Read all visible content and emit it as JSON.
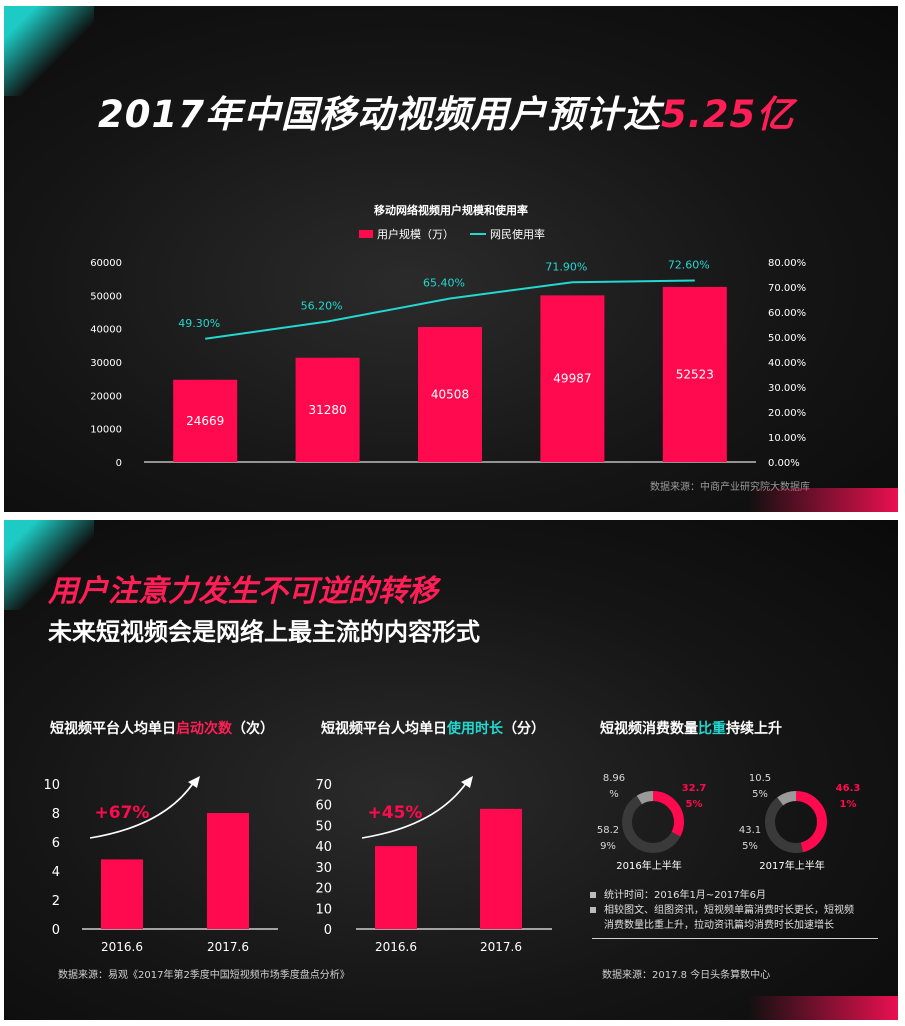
{
  "panel1": {
    "title_prefix": "2017年中国移动视频用户预计达",
    "title_highlight": "5.25亿",
    "source": "数据来源：中商产业研究院大数据库"
  },
  "panel2": {
    "headline1": "用户注意力发生不可逆的转移",
    "headline2": "未来短视频会是网络上最主流的内容形式",
    "chart1_title_a": "短视频平台人均单日",
    "chart1_title_b": "启动次数",
    "chart1_title_c": "（次）",
    "chart1_growth": "+67%",
    "chart2_title_a": "短视频平台人均单日",
    "chart2_title_b": "使用时长",
    "chart2_title_c": "（分）",
    "chart2_growth": "+45%",
    "chart3_title_a": "短视频消费数量",
    "chart3_title_b": "比重",
    "chart3_title_c": "持续上升",
    "source_left": "数据来源：易观《2017年第2季度中国短视频市场季度盘点分析》",
    "source_right": "数据来源：2017.8 今日头条算数中心",
    "notes": [
      "统计时间：2016年1月~2017年6月",
      "相较图文、组图资讯，短视频单篇消费时长更长，短视频消费数量比重上升，拉动资讯篇均消费时长加速增长"
    ]
  },
  "colors": {
    "pink": "#ff0a4e",
    "cyan": "#22d8d0",
    "gray_ring": "#3a3a3a",
    "light_ring": "#9a9a9a"
  },
  "chart_data": [
    {
      "type": "bar",
      "title": "移动网络视频用户规模和使用率",
      "categories": [
        "",
        "",
        "",
        "",
        ""
      ],
      "series": [
        {
          "name": "用户规模（万）",
          "type": "bar",
          "axis": "left",
          "values": [
            24669,
            31280,
            40508,
            49987,
            52523
          ]
        },
        {
          "name": "网民使用率",
          "type": "line",
          "axis": "right",
          "values": [
            49.3,
            56.2,
            65.4,
            71.9,
            72.6
          ],
          "labels": [
            "49.30%",
            "56.20%",
            "65.40%",
            "71.90%",
            "72.60%"
          ]
        }
      ],
      "ylim": [
        0,
        60000
      ],
      "y_ticks": [
        "0",
        "10000",
        "20000",
        "30000",
        "40000",
        "50000",
        "60000"
      ],
      "y2lim": [
        0,
        80
      ],
      "y2_ticks": [
        "0.00%",
        "10.00%",
        "20.00%",
        "30.00%",
        "40.00%",
        "50.00%",
        "60.00%",
        "70.00%",
        "80.00%"
      ],
      "legend": "top-center",
      "grid": false
    },
    {
      "type": "bar",
      "categories": [
        "2016.6",
        "2017.6"
      ],
      "values": [
        4.8,
        8
      ],
      "ylim": [
        0,
        10
      ],
      "y_ticks": [
        "0",
        "2",
        "4",
        "6",
        "8",
        "10"
      ]
    },
    {
      "type": "bar",
      "categories": [
        "2016.6",
        "2017.6"
      ],
      "values": [
        40,
        58
      ],
      "ylim": [
        0,
        70
      ],
      "y_ticks": [
        "0",
        "10",
        "20",
        "30",
        "40",
        "50",
        "60",
        "70"
      ]
    },
    {
      "type": "pie",
      "subtype": "donut",
      "label": "2016年上半年",
      "slices": [
        {
          "value": 32.75,
          "text": [
            "32.7",
            "5%"
          ]
        },
        {
          "value": 58.29,
          "text": [
            "58.2",
            "9%"
          ]
        },
        {
          "value": 8.96,
          "text": [
            "8.96",
            "%"
          ]
        }
      ]
    },
    {
      "type": "pie",
      "subtype": "donut",
      "label": "2017年上半年",
      "slices": [
        {
          "value": 46.31,
          "text": [
            "46.3",
            "1%"
          ]
        },
        {
          "value": 43.15,
          "text": [
            "43.1",
            "5%"
          ]
        },
        {
          "value": 10.55,
          "text": [
            "10.5",
            "5%"
          ]
        }
      ]
    }
  ]
}
